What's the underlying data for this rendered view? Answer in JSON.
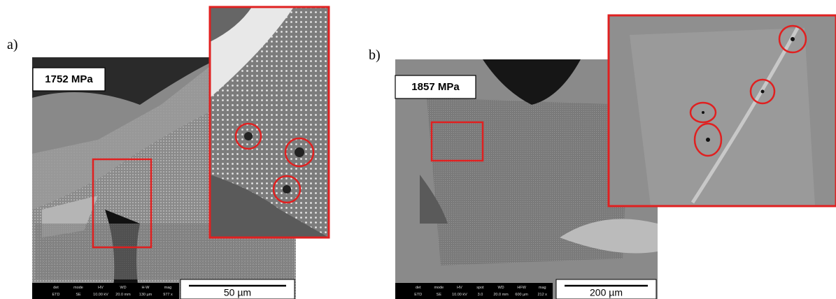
{
  "panels": [
    {
      "label": "a)",
      "pressure": "1752 MPa",
      "scale": "50 µm",
      "info": [
        {
          "name": "det",
          "value": "ETD"
        },
        {
          "name": "mode",
          "value": "SE"
        },
        {
          "name": "HV",
          "value": "10.00 kV"
        },
        {
          "name": "WD",
          "value": "20.0 mm"
        },
        {
          "name": "H-W",
          "value": "130 µm"
        },
        {
          "name": "mag",
          "value": "977 x"
        }
      ]
    },
    {
      "label": "b)",
      "pressure": "1857 MPa",
      "scale": "200 µm",
      "info": [
        {
          "name": "det",
          "value": "ETD"
        },
        {
          "name": "mode",
          "value": "SE"
        },
        {
          "name": "HV",
          "value": "10.00 kV"
        },
        {
          "name": "spot",
          "value": "3.0"
        },
        {
          "name": "WD",
          "value": "20.0 mm"
        },
        {
          "name": "HFW",
          "value": "600 µm"
        },
        {
          "name": "mag",
          "value": "212 x"
        }
      ]
    }
  ]
}
